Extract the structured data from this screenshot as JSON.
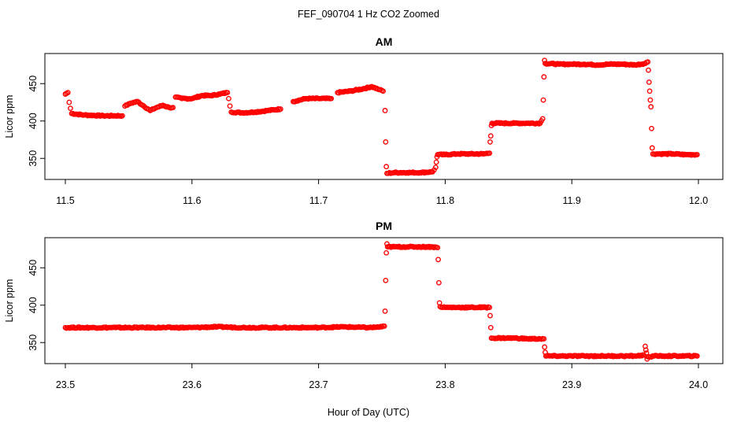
{
  "figure": {
    "title": "FEF_090704  1 Hz CO2 Zoomed",
    "xlabel": "Hour of Day (UTC)"
  },
  "chart_data": [
    {
      "type": "scatter",
      "title": "AM",
      "ylabel": "Licor ppm",
      "xlim": [
        11.5,
        12.0
      ],
      "ylim": [
        325,
        485
      ],
      "xticks": [
        "11.5",
        "11.6",
        "11.7",
        "11.8",
        "11.9",
        "12.0"
      ],
      "yticks": [
        "350",
        "400",
        "450"
      ],
      "color": "#ff0000",
      "marker": "open-circle",
      "series": [
        {
          "points": [
            [
              11.5,
              436
            ],
            [
              11.502,
              438
            ],
            [
              11.503,
              425
            ],
            [
              11.504,
              417
            ],
            [
              11.505,
              410
            ],
            [
              11.515,
              408
            ],
            [
              11.53,
              407
            ],
            [
              11.545,
              407
            ],
            [
              11.547,
              420
            ],
            [
              11.552,
              424
            ],
            [
              11.557,
              426
            ],
            [
              11.562,
              420
            ],
            [
              11.567,
              414
            ],
            [
              11.572,
              418
            ],
            [
              11.577,
              421
            ],
            [
              11.582,
              418
            ],
            [
              11.585,
              418
            ],
            [
              11.587,
              432
            ],
            [
              11.592,
              430
            ],
            [
              11.6,
              430
            ],
            [
              11.608,
              434
            ],
            [
              11.615,
              434
            ],
            [
              11.622,
              436
            ],
            [
              11.628,
              438
            ],
            [
              11.629,
              430
            ],
            [
              11.63,
              420
            ],
            [
              11.631,
              412
            ],
            [
              11.64,
              411
            ],
            [
              11.65,
              412
            ],
            [
              11.66,
              414
            ],
            [
              11.67,
              416
            ],
            [
              11.68,
              426
            ],
            [
              11.69,
              430
            ],
            [
              11.7,
              430
            ],
            [
              11.71,
              430
            ],
            [
              11.715,
              438
            ],
            [
              11.725,
              440
            ],
            [
              11.735,
              443
            ],
            [
              11.742,
              446
            ],
            [
              11.748,
              442
            ],
            [
              11.751,
              440
            ],
            [
              11.7525,
              414
            ],
            [
              11.753,
              372
            ],
            [
              11.7535,
              339
            ],
            [
              11.754,
              330
            ],
            [
              11.76,
              331
            ],
            [
              11.77,
              331
            ],
            [
              11.78,
              331
            ],
            [
              11.79,
              332
            ],
            [
              11.7925,
              338
            ],
            [
              11.793,
              345
            ],
            [
              11.7935,
              352
            ],
            [
              11.794,
              355
            ],
            [
              11.8,
              355
            ],
            [
              11.81,
              356
            ],
            [
              11.82,
              356
            ],
            [
              11.83,
              356
            ],
            [
              11.835,
              357
            ],
            [
              11.8355,
              372
            ],
            [
              11.836,
              380
            ],
            [
              11.8365,
              394
            ],
            [
              11.837,
              397
            ],
            [
              11.845,
              397
            ],
            [
              11.855,
              397
            ],
            [
              11.865,
              397
            ],
            [
              11.875,
              397
            ],
            [
              11.877,
              403
            ],
            [
              11.8775,
              428
            ],
            [
              11.878,
              459
            ],
            [
              11.8785,
              481
            ],
            [
              11.879,
              477
            ],
            [
              11.89,
              476
            ],
            [
              11.9,
              476
            ],
            [
              11.91,
              476
            ],
            [
              11.92,
              475
            ],
            [
              11.93,
              476
            ],
            [
              11.94,
              476
            ],
            [
              11.95,
              475
            ],
            [
              11.958,
              477
            ],
            [
              11.96,
              479
            ],
            [
              11.9605,
              468
            ],
            [
              11.961,
              452
            ],
            [
              11.9615,
              440
            ],
            [
              11.962,
              428
            ],
            [
              11.9625,
              419
            ],
            [
              11.963,
              390
            ],
            [
              11.9635,
              364
            ],
            [
              11.964,
              356
            ],
            [
              11.97,
              356
            ],
            [
              11.98,
              356
            ],
            [
              11.99,
              355
            ],
            [
              11.999,
              355
            ]
          ]
        }
      ]
    },
    {
      "type": "scatter",
      "title": "PM",
      "ylabel": "Licor ppm",
      "xlim": [
        23.5,
        24.0
      ],
      "ylim": [
        325,
        485
      ],
      "xticks": [
        "23.5",
        "23.6",
        "23.7",
        "23.8",
        "23.9",
        "24.0"
      ],
      "yticks": [
        "350",
        "400",
        "450"
      ],
      "color": "#ff0000",
      "marker": "open-circle",
      "series": [
        {
          "points": [
            [
              23.5,
              370
            ],
            [
              23.52,
              370
            ],
            [
              23.54,
              370
            ],
            [
              23.56,
              370
            ],
            [
              23.58,
              370
            ],
            [
              23.6,
              370
            ],
            [
              23.62,
              371
            ],
            [
              23.64,
              370
            ],
            [
              23.66,
              370
            ],
            [
              23.68,
              370
            ],
            [
              23.7,
              370
            ],
            [
              23.72,
              371
            ],
            [
              23.74,
              370
            ],
            [
              23.75,
              371
            ],
            [
              23.752,
              372
            ],
            [
              23.7525,
              392
            ],
            [
              23.753,
              433
            ],
            [
              23.7535,
              470
            ],
            [
              23.754,
              482
            ],
            [
              23.7545,
              478
            ],
            [
              23.76,
              478
            ],
            [
              23.77,
              478
            ],
            [
              23.78,
              478
            ],
            [
              23.79,
              478
            ],
            [
              23.794,
              477
            ],
            [
              23.7945,
              461
            ],
            [
              23.795,
              430
            ],
            [
              23.7955,
              403
            ],
            [
              23.796,
              398
            ],
            [
              23.8,
              397
            ],
            [
              23.81,
              397
            ],
            [
              23.82,
              397
            ],
            [
              23.83,
              397
            ],
            [
              23.835,
              397
            ],
            [
              23.8355,
              386
            ],
            [
              23.836,
              370
            ],
            [
              23.8365,
              356
            ],
            [
              23.845,
              356
            ],
            [
              23.855,
              356
            ],
            [
              23.865,
              355
            ],
            [
              23.875,
              355
            ],
            [
              23.878,
              355
            ],
            [
              23.8785,
              344
            ],
            [
              23.879,
              337
            ],
            [
              23.8795,
              332
            ],
            [
              23.89,
              332
            ],
            [
              23.9,
              332
            ],
            [
              23.91,
              332
            ],
            [
              23.92,
              332
            ],
            [
              23.93,
              332
            ],
            [
              23.94,
              332
            ],
            [
              23.95,
              332
            ],
            [
              23.957,
              333
            ],
            [
              23.958,
              345
            ],
            [
              23.9585,
              340
            ],
            [
              23.959,
              336
            ],
            [
              23.9595,
              328
            ],
            [
              23.96,
              331
            ],
            [
              23.965,
              332
            ],
            [
              23.975,
              332
            ],
            [
              23.985,
              332
            ],
            [
              23.999,
              332
            ]
          ]
        }
      ]
    }
  ]
}
